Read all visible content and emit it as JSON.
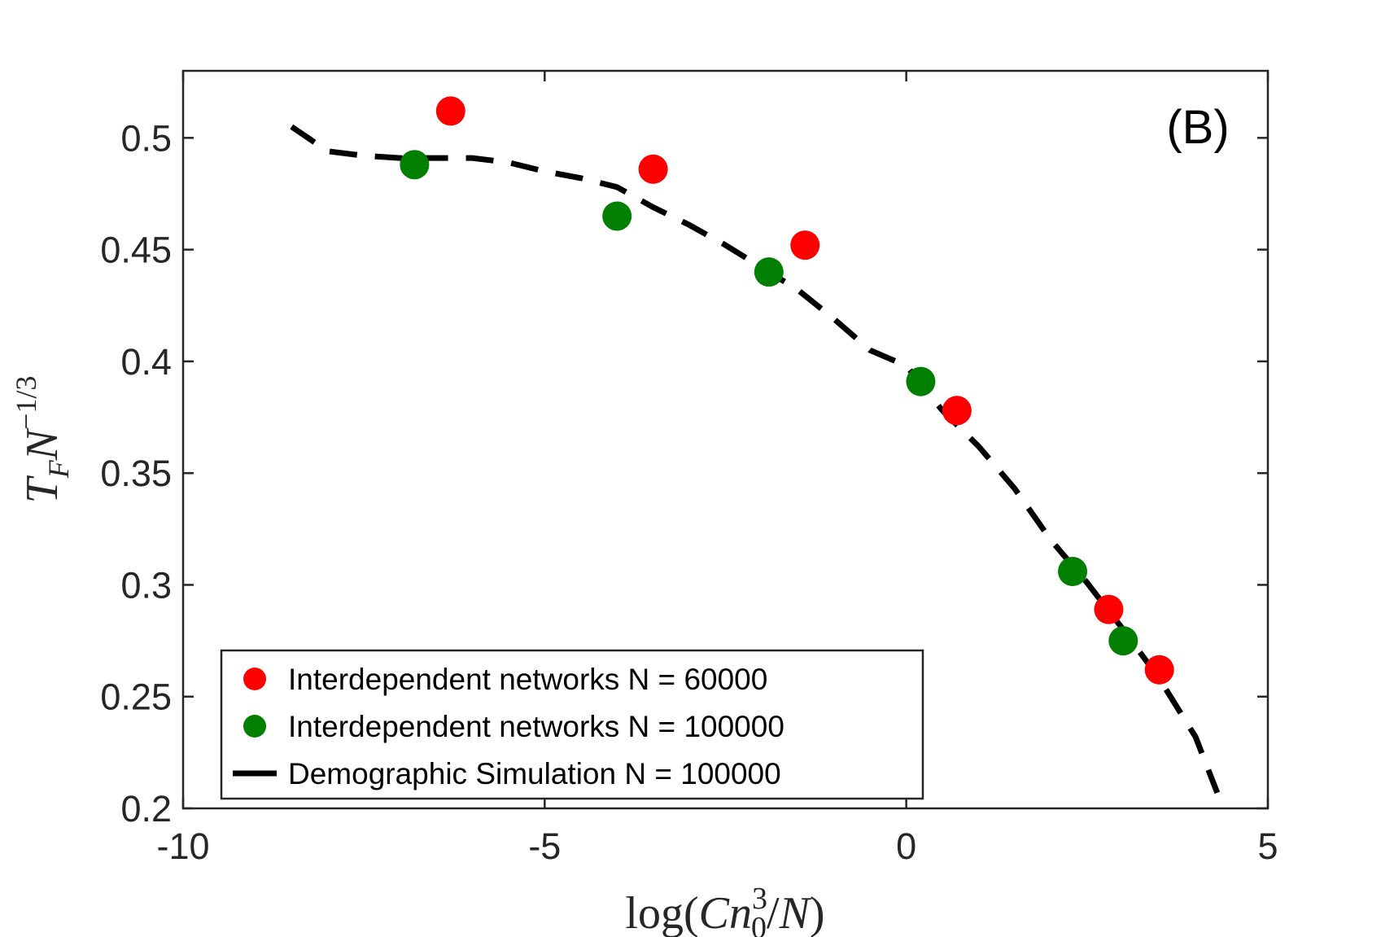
{
  "chart_data": {
    "type": "scatter",
    "panel_label": "(B)",
    "xlabel": {
      "prefix": "log(",
      "var1": "Cn",
      "sub": "0",
      "sup": "3",
      "sep": "/",
      "var2": "N",
      "suffix": ")"
    },
    "ylabel": {
      "base1": "T",
      "sub": "F",
      "base2": "N",
      "sup": "−1/3"
    },
    "xlim": [
      -10,
      5
    ],
    "ylim": [
      0.2,
      0.53
    ],
    "x_ticks": [
      -10,
      -5,
      0,
      5
    ],
    "x_tick_labels": [
      "-10",
      "-5",
      "0",
      "5"
    ],
    "y_ticks": [
      0.2,
      0.25,
      0.3,
      0.35,
      0.4,
      0.45,
      0.5
    ],
    "y_tick_labels": [
      "0.2",
      "0.25",
      "0.3",
      "0.35",
      "0.4",
      "0.45",
      "0.5"
    ],
    "legend_position": "bottom-left",
    "series": [
      {
        "name": "Interdependent networks N = 60000",
        "kind": "scatter",
        "color": "#ff0000",
        "x": [
          -6.3,
          -3.5,
          -1.4,
          0.7,
          2.8,
          3.5
        ],
        "y": [
          0.512,
          0.486,
          0.452,
          0.378,
          0.289,
          0.262
        ]
      },
      {
        "name": "Interdependent networks N = 100000",
        "kind": "scatter",
        "color": "#007f00",
        "x": [
          -6.8,
          -4.0,
          -1.9,
          0.2,
          2.3,
          3.0
        ],
        "y": [
          0.488,
          0.465,
          0.44,
          0.391,
          0.306,
          0.275
        ]
      },
      {
        "name": "Demographic Simulation N = 100000",
        "kind": "dashed-line",
        "color": "#000000",
        "x": [
          -8.5,
          -8.0,
          -7.5,
          -7.0,
          -6.5,
          -6.0,
          -5.5,
          -5.0,
          -4.5,
          -4.0,
          -3.5,
          -3.0,
          -2.5,
          -2.0,
          -1.5,
          -1.0,
          -0.5,
          0.0,
          0.5,
          1.0,
          1.5,
          2.0,
          2.5,
          3.0,
          3.5,
          4.0,
          4.3
        ],
        "y": [
          0.505,
          0.494,
          0.492,
          0.491,
          0.491,
          0.491,
          0.489,
          0.485,
          0.482,
          0.478,
          0.469,
          0.461,
          0.452,
          0.442,
          0.432,
          0.419,
          0.405,
          0.398,
          0.378,
          0.362,
          0.343,
          0.32,
          0.301,
          0.28,
          0.258,
          0.232,
          0.207
        ]
      }
    ]
  }
}
